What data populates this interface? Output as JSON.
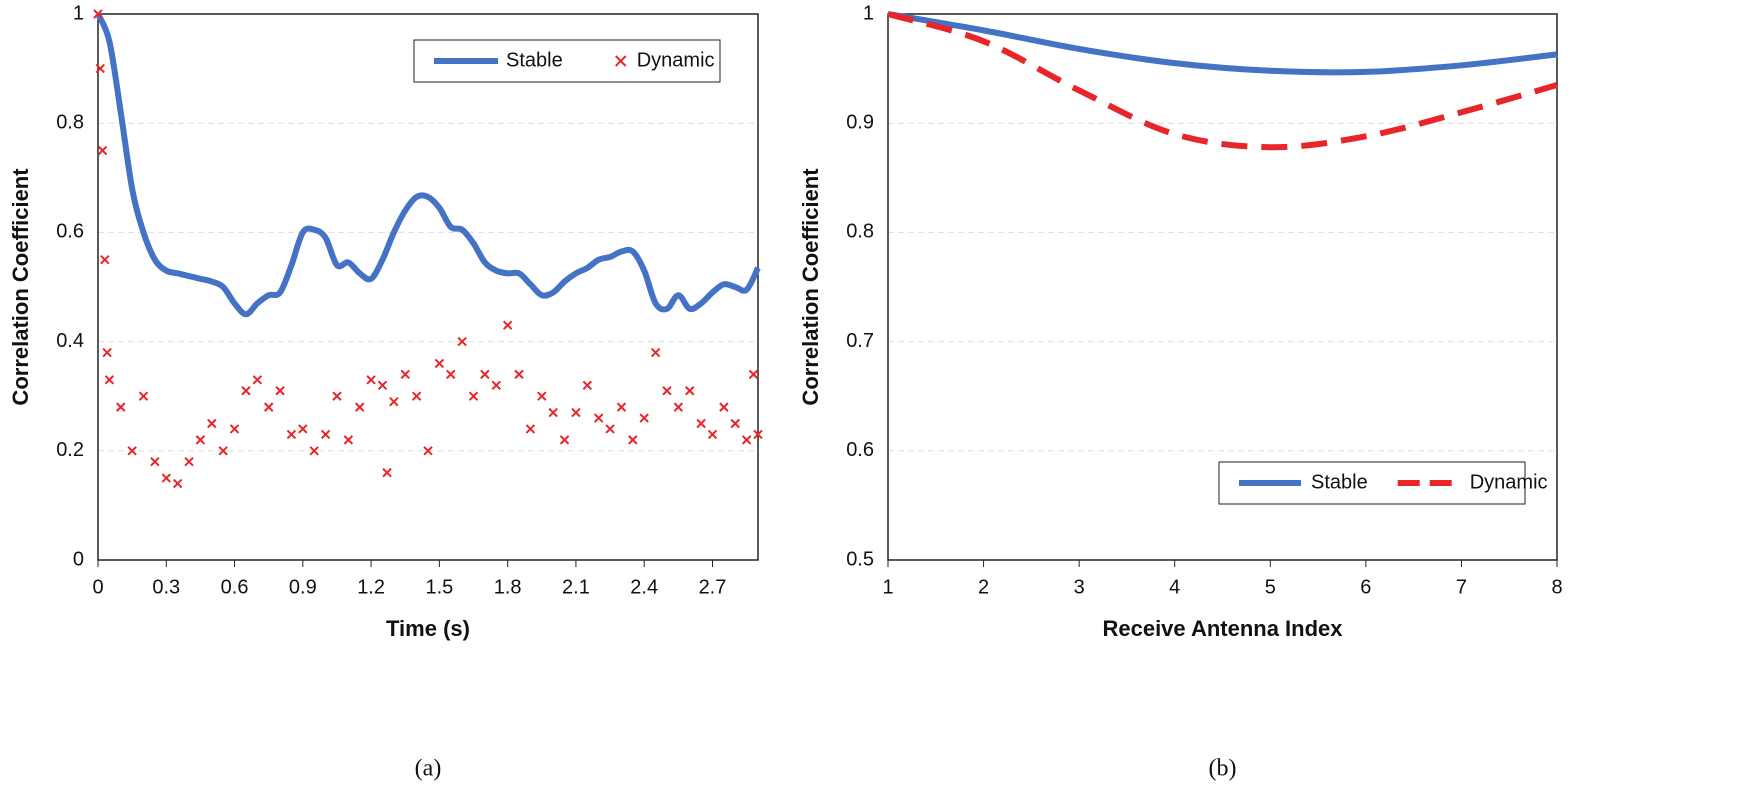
{
  "chart_data": [
    {
      "type": "line",
      "caption": "(a)",
      "xlabel": "Time (s)",
      "ylabel": "Correlation Coefficient",
      "xlim": [
        0,
        2.9
      ],
      "xticks": [
        0,
        0.3,
        0.6,
        0.9,
        1.2,
        1.5,
        1.8,
        2.1,
        2.4,
        2.7
      ],
      "ylim": [
        0,
        1
      ],
      "yticks": [
        0,
        0.2,
        0.4,
        0.6,
        0.8,
        1
      ],
      "grid": true,
      "legend": "upper right",
      "series": [
        {
          "name": "Stable",
          "color": "#4472c4",
          "type": "line",
          "x": [
            0,
            0.05,
            0.1,
            0.15,
            0.2,
            0.25,
            0.3,
            0.35,
            0.4,
            0.45,
            0.5,
            0.55,
            0.6,
            0.65,
            0.7,
            0.75,
            0.8,
            0.85,
            0.9,
            0.95,
            1.0,
            1.05,
            1.1,
            1.15,
            1.2,
            1.25,
            1.3,
            1.35,
            1.4,
            1.45,
            1.5,
            1.55,
            1.6,
            1.65,
            1.7,
            1.75,
            1.8,
            1.85,
            1.9,
            1.95,
            2.0,
            2.05,
            2.1,
            2.15,
            2.2,
            2.25,
            2.3,
            2.35,
            2.4,
            2.45,
            2.5,
            2.55,
            2.6,
            2.65,
            2.7,
            2.75,
            2.8,
            2.85,
            2.9
          ],
          "values": [
            1.0,
            0.95,
            0.82,
            0.68,
            0.6,
            0.55,
            0.53,
            0.525,
            0.52,
            0.515,
            0.51,
            0.5,
            0.47,
            0.45,
            0.47,
            0.485,
            0.49,
            0.54,
            0.6,
            0.605,
            0.59,
            0.54,
            0.545,
            0.525,
            0.515,
            0.55,
            0.6,
            0.64,
            0.665,
            0.665,
            0.645,
            0.61,
            0.605,
            0.58,
            0.545,
            0.53,
            0.525,
            0.525,
            0.505,
            0.485,
            0.49,
            0.51,
            0.525,
            0.535,
            0.55,
            0.555,
            0.565,
            0.565,
            0.53,
            0.47,
            0.46,
            0.485,
            0.46,
            0.47,
            0.49,
            0.505,
            0.5,
            0.495,
            0.535
          ]
        },
        {
          "name": "Dynamic",
          "color": "#e8262a",
          "type": "scatter",
          "x": [
            0,
            0.01,
            0.02,
            0.03,
            0.04,
            0.05,
            0.1,
            0.15,
            0.2,
            0.25,
            0.3,
            0.35,
            0.4,
            0.45,
            0.5,
            0.55,
            0.6,
            0.65,
            0.7,
            0.75,
            0.8,
            0.85,
            0.9,
            0.95,
            1.0,
            1.05,
            1.1,
            1.15,
            1.2,
            1.25,
            1.27,
            1.3,
            1.35,
            1.4,
            1.45,
            1.5,
            1.55,
            1.6,
            1.65,
            1.7,
            1.75,
            1.8,
            1.85,
            1.9,
            1.95,
            2.0,
            2.05,
            2.1,
            2.15,
            2.2,
            2.25,
            2.3,
            2.35,
            2.4,
            2.45,
            2.5,
            2.55,
            2.6,
            2.65,
            2.7,
            2.75,
            2.8,
            2.85,
            2.88,
            2.9
          ],
          "values": [
            1.0,
            0.9,
            0.75,
            0.55,
            0.38,
            0.33,
            0.28,
            0.2,
            0.3,
            0.18,
            0.15,
            0.14,
            0.18,
            0.22,
            0.25,
            0.2,
            0.24,
            0.31,
            0.33,
            0.28,
            0.31,
            0.23,
            0.24,
            0.2,
            0.23,
            0.3,
            0.22,
            0.28,
            0.33,
            0.32,
            0.16,
            0.29,
            0.34,
            0.3,
            0.2,
            0.36,
            0.34,
            0.4,
            0.3,
            0.34,
            0.32,
            0.43,
            0.34,
            0.24,
            0.3,
            0.27,
            0.22,
            0.27,
            0.32,
            0.26,
            0.24,
            0.28,
            0.22,
            0.26,
            0.38,
            0.31,
            0.28,
            0.31,
            0.25,
            0.23,
            0.28,
            0.25,
            0.22,
            0.34,
            0.23
          ]
        }
      ]
    },
    {
      "type": "line",
      "caption": "(b)",
      "xlabel": "Receive Antenna Index",
      "ylabel": "Correlation Coefficient",
      "xlim": [
        1,
        8
      ],
      "xticks": [
        1,
        2,
        3,
        4,
        5,
        6,
        7,
        8
      ],
      "ylim": [
        0.5,
        1
      ],
      "yticks": [
        0.5,
        0.6,
        0.7,
        0.8,
        0.9,
        1
      ],
      "grid": true,
      "legend": "lower right",
      "series": [
        {
          "name": "Stable",
          "color": "#4472c4",
          "type": "line",
          "x": [
            1,
            2,
            3,
            4,
            5,
            6,
            7,
            8
          ],
          "values": [
            1.0,
            0.985,
            0.968,
            0.955,
            0.948,
            0.947,
            0.953,
            0.963
          ]
        },
        {
          "name": "Dynamic",
          "color": "#e8262a",
          "type": "line",
          "dash": true,
          "x": [
            1,
            2,
            3,
            4,
            5,
            6,
            7,
            8
          ],
          "values": [
            1.0,
            0.975,
            0.93,
            0.89,
            0.878,
            0.888,
            0.91,
            0.935
          ]
        }
      ]
    }
  ]
}
